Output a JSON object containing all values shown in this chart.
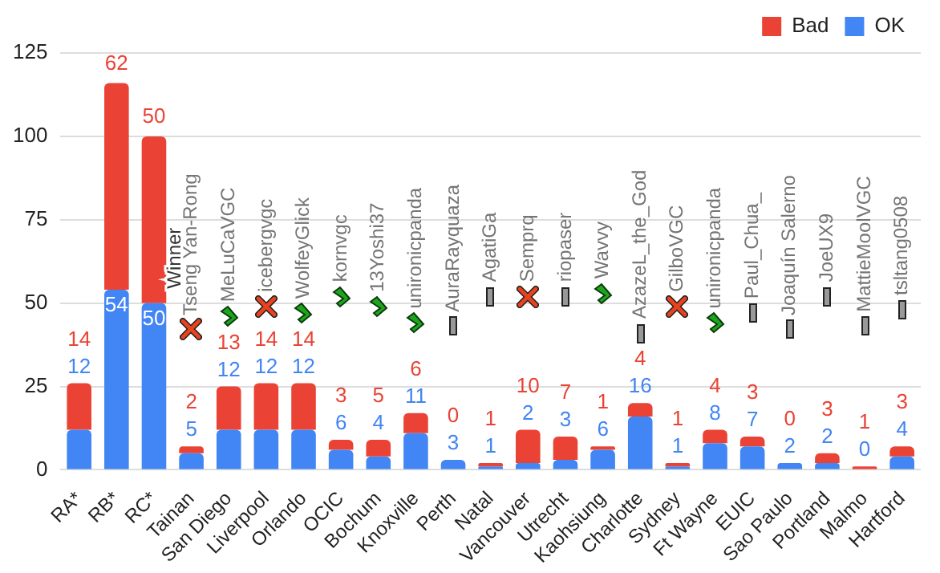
{
  "chart_data": {
    "type": "bar",
    "stacked": true,
    "categories": [
      "RA*",
      "RB*",
      "RC*",
      "Tainan",
      "San Diego",
      "Liverpool",
      "Orlando",
      "OCIC",
      "Bochum",
      "Knoxville",
      "Perth",
      "Natal",
      "Vancouver",
      "Utrecht",
      "Kaohsiung",
      "Charlotte",
      "Sydney",
      "Ft Wayne",
      "EUIC",
      "Sao Paulo",
      "Portland",
      "Malmo",
      "Hartford"
    ],
    "series": [
      {
        "name": "OK",
        "color": "#4285f4",
        "values": [
          12,
          54,
          50,
          5,
          12,
          12,
          12,
          6,
          4,
          11,
          3,
          1,
          2,
          3,
          6,
          16,
          1,
          8,
          7,
          2,
          2,
          0,
          4
        ]
      },
      {
        "name": "Bad",
        "color": "#ea4335",
        "values": [
          14,
          62,
          50,
          2,
          13,
          14,
          14,
          3,
          5,
          6,
          0,
          1,
          10,
          7,
          1,
          4,
          1,
          4,
          3,
          0,
          3,
          1,
          3
        ]
      }
    ],
    "ylim": [
      0,
      125
    ],
    "yticks": [
      0,
      25,
      50,
      75,
      100,
      125
    ],
    "grid": "y",
    "legend": "top right",
    "data_labels": true,
    "annotations": [
      {
        "text": "Winner",
        "x": "RC*",
        "y": 50
      },
      {
        "text": "Tseng Yan-Rong",
        "x": "Tainan",
        "y": 42
      },
      {
        "text": "MeLuCaVGC",
        "x": "San Diego",
        "y": 46
      },
      {
        "text": "icebergvgc",
        "x": "Liverpool",
        "y": 49
      },
      {
        "text": "WolfeyGlick",
        "x": "Orlando",
        "y": 47
      },
      {
        "text": "kornvgc",
        "x": "OCIC",
        "y": 52
      },
      {
        "text": "13Yoshi37",
        "x": "Bochum",
        "y": 49
      },
      {
        "text": "unironicpanda",
        "x": "Knoxville",
        "y": 44
      },
      {
        "text": "AuraRayquaza",
        "x": "Perth",
        "y": 43
      },
      {
        "text": "AgatiGa",
        "x": "Natal",
        "y": 52
      },
      {
        "text": "Semprq",
        "x": "Vancouver",
        "y": 52
      },
      {
        "text": "riopaser",
        "x": "Utrecht",
        "y": 52
      },
      {
        "text": "Wavvy",
        "x": "Kaohsiung",
        "y": 53
      },
      {
        "text": "AzazeL_the_God",
        "x": "Charlotte",
        "y": 41
      },
      {
        "text": "GilboVGC",
        "x": "Sydney",
        "y": 49
      },
      {
        "text": "unironicpanda",
        "x": "Ft Wayne",
        "y": 44
      },
      {
        "text": "Paul_Chua_",
        "x": "EUIC",
        "y": 47
      },
      {
        "text": "Joaquín Salerno",
        "x": "Sao Paulo",
        "y": 42
      },
      {
        "text": "JoeUX9",
        "x": "Portland",
        "y": 52
      },
      {
        "text": "MattieMoolVGC",
        "x": "Malmo",
        "y": 43
      },
      {
        "text": "tsltang0508",
        "x": "Hartford",
        "y": 48
      }
    ]
  }
}
